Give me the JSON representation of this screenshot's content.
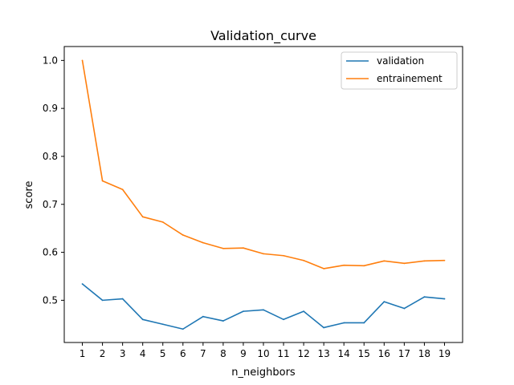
{
  "chart_data": {
    "type": "line",
    "title": "Validation_curve",
    "xlabel": "n_neighbors",
    "ylabel": "score",
    "x": [
      1,
      2,
      3,
      4,
      5,
      6,
      7,
      8,
      9,
      10,
      11,
      12,
      13,
      14,
      15,
      16,
      17,
      18,
      19
    ],
    "xlim": [
      0.1,
      19.9
    ],
    "ylim": [
      0.412,
      1.029
    ],
    "yticks": [
      0.5,
      0.6,
      0.7,
      0.8,
      0.9,
      1.0
    ],
    "ytick_labels": [
      "0.5",
      "0.6",
      "0.7",
      "0.8",
      "0.9",
      "1.0"
    ],
    "grid": false,
    "legend_position": "top-right",
    "series": [
      {
        "name": "validation",
        "color": "#1f77b4",
        "values": [
          0.534,
          0.5,
          0.503,
          0.46,
          0.45,
          0.44,
          0.466,
          0.457,
          0.477,
          0.48,
          0.46,
          0.477,
          0.443,
          0.453,
          0.453,
          0.497,
          0.483,
          0.507,
          0.503
        ]
      },
      {
        "name": "entrainement",
        "color": "#ff7f0e",
        "values": [
          1.0,
          0.749,
          0.731,
          0.674,
          0.663,
          0.636,
          0.62,
          0.608,
          0.609,
          0.597,
          0.593,
          0.583,
          0.566,
          0.573,
          0.572,
          0.582,
          0.577,
          0.582,
          0.583
        ]
      }
    ]
  }
}
